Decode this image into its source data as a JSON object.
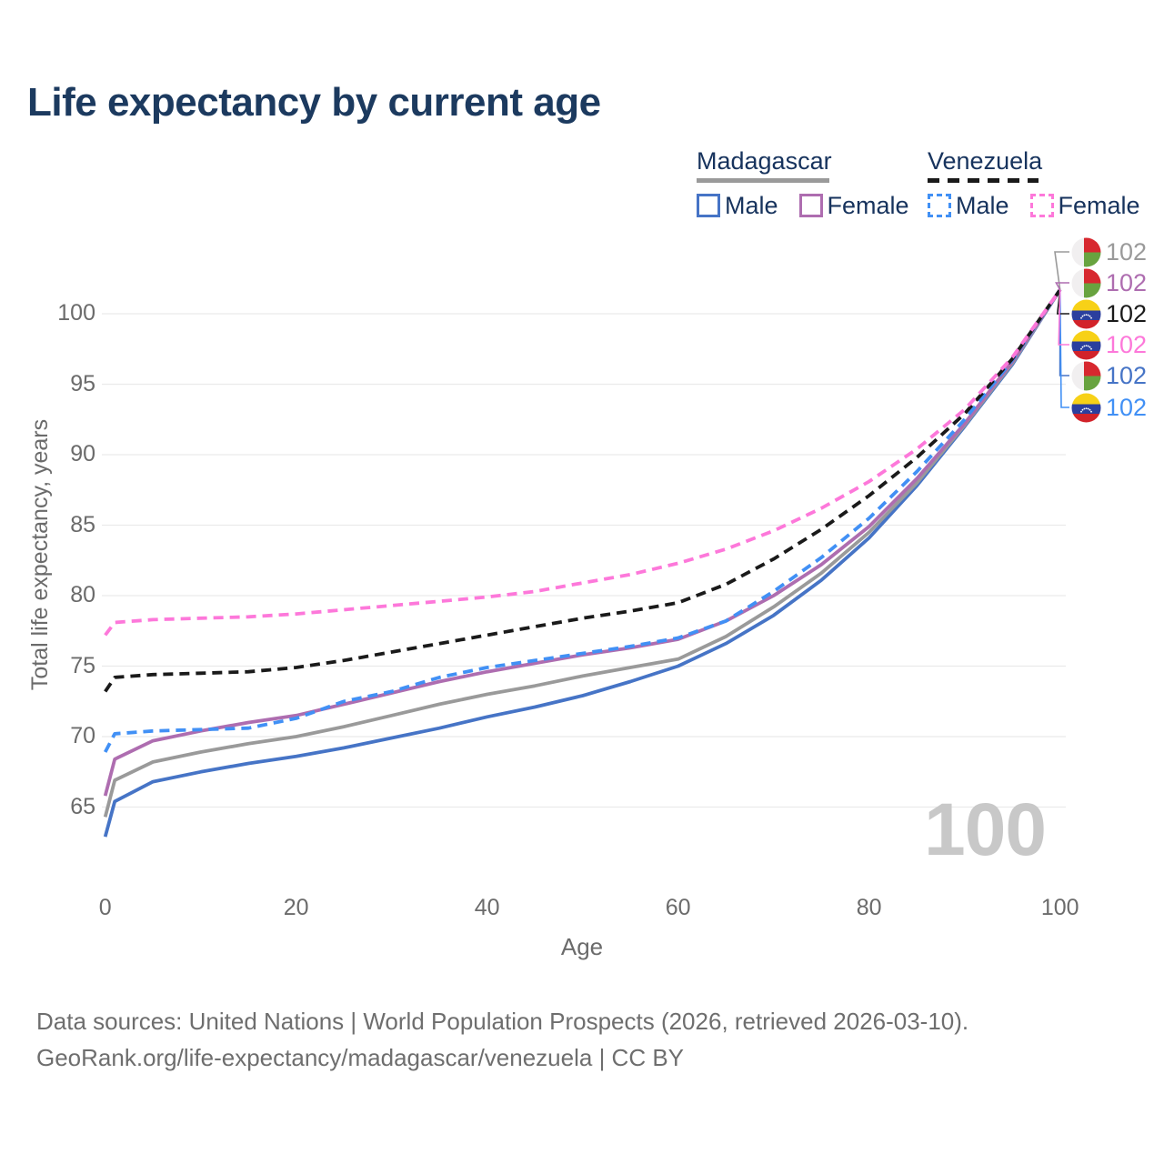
{
  "title": "Life expectancy by current age",
  "legend": {
    "groups": [
      {
        "label": "Madagascar",
        "line_style": "solid",
        "line_color": "#9a9a9a",
        "items": [
          {
            "label": "Male",
            "color": "#4674c6",
            "style": "solid"
          },
          {
            "label": "Female",
            "color": "#ae6db0",
            "style": "solid"
          }
        ]
      },
      {
        "label": "Venezuela",
        "line_style": "dashed",
        "line_color": "#1a1a1a",
        "items": [
          {
            "label": "Male",
            "color": "#4190f5",
            "style": "dashed"
          },
          {
            "label": "Female",
            "color": "#fd78da",
            "style": "dashed"
          }
        ]
      }
    ]
  },
  "watermark": "100",
  "footer": {
    "line1": "Data sources: United Nations | World Population Prospects (2026, retrieved 2026-03-10).",
    "line2": "GeoRank.org/life-expectancy/madagascar/venezuela | CC BY"
  },
  "chart_data": {
    "type": "line",
    "title": "Life expectancy by current age",
    "xlabel": "Age",
    "ylabel": "Total life expectancy, years",
    "x_ticks": [
      0,
      20,
      40,
      60,
      80,
      100
    ],
    "y_ticks": [
      65,
      70,
      75,
      80,
      85,
      90,
      95,
      100
    ],
    "xlim": [
      0,
      100
    ],
    "ylim": [
      62,
      103
    ],
    "grid": "horizontal",
    "legend_position": "top-right",
    "ages": [
      0,
      1,
      5,
      10,
      15,
      20,
      25,
      30,
      35,
      40,
      45,
      50,
      55,
      60,
      65,
      70,
      75,
      80,
      85,
      90,
      95,
      100
    ],
    "series": [
      {
        "name": "Madagascar Male",
        "country": "Madagascar",
        "sex": "Male",
        "style": "solid",
        "color": "#4674c6",
        "flag": "madagascar",
        "end_label": "102",
        "end_row": 4,
        "values": [
          62.9,
          65.4,
          66.8,
          67.5,
          68.1,
          68.6,
          69.2,
          69.9,
          70.6,
          71.4,
          72.1,
          72.9,
          73.9,
          75.0,
          76.6,
          78.6,
          81.1,
          84.1,
          87.8,
          92.0,
          96.4,
          101.7
        ]
      },
      {
        "name": "Madagascar Both sexes",
        "country": "Madagascar",
        "sex": "Both sexes",
        "style": "solid",
        "color": "#9a9a9a",
        "flag": "madagascar",
        "end_label": "102",
        "end_row": 0,
        "values": [
          64.3,
          66.9,
          68.2,
          68.9,
          69.5,
          70.0,
          70.7,
          71.5,
          72.3,
          73.0,
          73.6,
          74.3,
          74.9,
          75.5,
          77.1,
          79.2,
          81.6,
          84.5,
          88.0,
          92.1,
          96.5,
          101.7
        ]
      },
      {
        "name": "Madagascar Female",
        "country": "Madagascar",
        "sex": "Female",
        "style": "solid",
        "color": "#ae6db0",
        "flag": "madagascar",
        "end_label": "102",
        "end_row": 1,
        "values": [
          65.8,
          68.4,
          69.7,
          70.4,
          71.0,
          71.5,
          72.3,
          73.1,
          73.9,
          74.6,
          75.2,
          75.8,
          76.3,
          76.9,
          78.2,
          80.0,
          82.2,
          84.9,
          88.3,
          92.2,
          96.6,
          101.7
        ]
      },
      {
        "name": "Venezuela Male",
        "country": "Venezuela",
        "sex": "Male",
        "style": "dashed",
        "color": "#4190f5",
        "flag": "venezuela",
        "end_label": "102",
        "end_row": 5,
        "values": [
          68.9,
          70.2,
          70.4,
          70.5,
          70.6,
          71.3,
          72.5,
          73.2,
          74.2,
          74.9,
          75.4,
          75.9,
          76.4,
          77.0,
          78.2,
          80.3,
          82.7,
          85.5,
          88.8,
          92.5,
          96.7,
          101.7
        ]
      },
      {
        "name": "Venezuela Both sexes",
        "country": "Venezuela",
        "sex": "Both sexes",
        "style": "dashed",
        "color": "#1a1a1a",
        "flag": "venezuela",
        "end_label": "102",
        "end_row": 2,
        "values": [
          73.2,
          74.2,
          74.4,
          74.5,
          74.6,
          74.9,
          75.4,
          76.0,
          76.6,
          77.2,
          77.8,
          78.4,
          78.9,
          79.5,
          80.8,
          82.6,
          84.7,
          87.1,
          89.8,
          92.9,
          96.8,
          101.7
        ]
      },
      {
        "name": "Venezuela Female",
        "country": "Venezuela",
        "sex": "Female",
        "style": "dashed",
        "color": "#fd78da",
        "flag": "venezuela",
        "end_label": "102",
        "end_row": 3,
        "values": [
          77.2,
          78.1,
          78.3,
          78.4,
          78.5,
          78.7,
          79.0,
          79.3,
          79.6,
          79.9,
          80.3,
          80.9,
          81.5,
          82.3,
          83.3,
          84.6,
          86.2,
          88.1,
          90.4,
          93.2,
          96.9,
          101.7
        ]
      }
    ]
  }
}
